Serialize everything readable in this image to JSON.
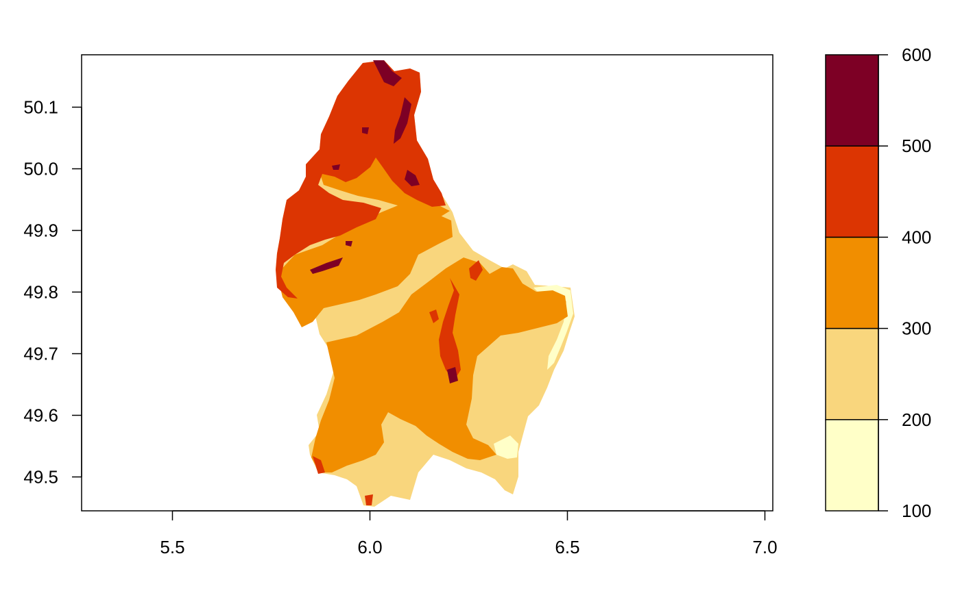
{
  "chart_data": {
    "type": "heatmap",
    "title": "",
    "xlabel": "",
    "ylabel": "",
    "xlim": [
      5.27,
      7.02
    ],
    "ylim": [
      49.445,
      50.185
    ],
    "x_ticks": [
      "5.5",
      "6.0",
      "6.5",
      "7.0"
    ],
    "y_ticks": [
      "49.5",
      "49.6",
      "49.7",
      "49.8",
      "49.9",
      "50.0",
      "50.1"
    ],
    "legend": {
      "placement": "right",
      "range": [
        100,
        600
      ],
      "breaks": [
        100,
        200,
        300,
        400,
        500,
        600
      ],
      "tick_labels": [
        "100",
        "200",
        "300",
        "400",
        "500",
        "600"
      ],
      "colors": [
        "#FFFFC8",
        "#F9D67D",
        "#F18E00",
        "#DC3502",
        "#7D0025"
      ]
    },
    "color_classes": [
      {
        "range": [
          100,
          200
        ],
        "color": "#FFFFC8"
      },
      {
        "range": [
          200,
          300
        ],
        "color": "#F9D67D"
      },
      {
        "range": [
          300,
          400
        ],
        "color": "#F18E00"
      },
      {
        "range": [
          400,
          500
        ],
        "color": "#DC3502"
      },
      {
        "range": [
          500,
          600
        ],
        "color": "#7D0025"
      }
    ],
    "grid": false
  }
}
